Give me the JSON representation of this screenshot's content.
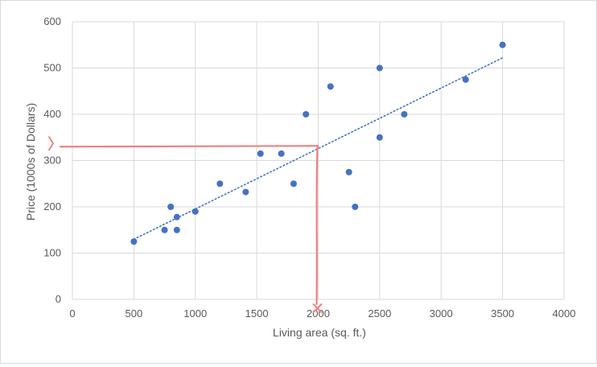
{
  "chart_data": {
    "type": "scatter",
    "xlabel": "Living area (sq. ft.)",
    "ylabel": "Price (1000s of Dollars)",
    "xlim": [
      0,
      4000
    ],
    "ylim": [
      0,
      600
    ],
    "x_ticks": [
      0,
      500,
      1000,
      1500,
      2000,
      2500,
      3000,
      3500,
      4000
    ],
    "y_ticks": [
      0,
      100,
      200,
      300,
      400,
      500,
      600
    ],
    "grid": "both",
    "legend": "none",
    "series": [
      {
        "color": "#4472c4",
        "points": [
          {
            "x": 500,
            "y": 125
          },
          {
            "x": 750,
            "y": 150
          },
          {
            "x": 800,
            "y": 200
          },
          {
            "x": 850,
            "y": 150
          },
          {
            "x": 850,
            "y": 178
          },
          {
            "x": 1000,
            "y": 190
          },
          {
            "x": 1200,
            "y": 250
          },
          {
            "x": 1410,
            "y": 232
          },
          {
            "x": 1530,
            "y": 315
          },
          {
            "x": 1700,
            "y": 315
          },
          {
            "x": 1800,
            "y": 250
          },
          {
            "x": 1900,
            "y": 400
          },
          {
            "x": 2100,
            "y": 460
          },
          {
            "x": 2250,
            "y": 275
          },
          {
            "x": 2300,
            "y": 200
          },
          {
            "x": 2500,
            "y": 500
          },
          {
            "x": 2500,
            "y": 350
          },
          {
            "x": 2700,
            "y": 400
          },
          {
            "x": 3200,
            "y": 475
          },
          {
            "x": 3500,
            "y": 550
          }
        ]
      }
    ],
    "trendline": {
      "type": "linear",
      "style": "dotted",
      "color": "#4472c4",
      "x_start": 500,
      "y_start": 130,
      "x_end": 3500,
      "y_end": 522
    },
    "annotation": {
      "color": "#f08080",
      "x": 2000,
      "y": 330,
      "description": "hand-drawn red guide lines from x=2000 up to the trendline and across to the y-axis"
    }
  }
}
